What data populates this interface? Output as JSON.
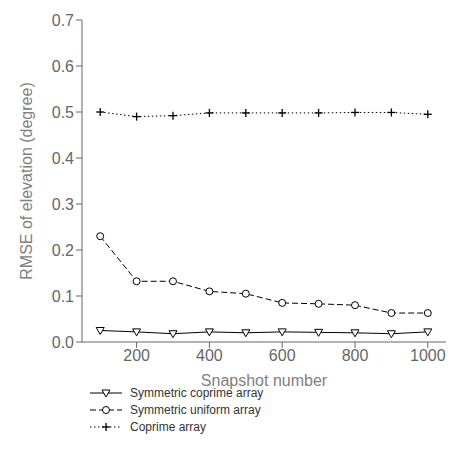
{
  "chart_data": {
    "type": "line",
    "x": [
      100,
      200,
      300,
      400,
      500,
      600,
      700,
      800,
      900,
      1000
    ],
    "series": [
      {
        "name": "Symmetric coprime array",
        "color": "#000000",
        "marker": "triangle-down",
        "line_style": "solid",
        "values": [
          0.025,
          0.022,
          0.018,
          0.022,
          0.02,
          0.022,
          0.021,
          0.02,
          0.018,
          0.022
        ]
      },
      {
        "name": "Symmetric uniform array",
        "color": "#000000",
        "marker": "circle",
        "line_style": "dashed",
        "values": [
          0.23,
          0.132,
          0.132,
          0.11,
          0.105,
          0.085,
          0.083,
          0.08,
          0.063,
          0.063
        ]
      },
      {
        "name": "Coprime array",
        "color": "#000000",
        "marker": "plus",
        "line_style": "dotted",
        "values": [
          0.5,
          0.49,
          0.492,
          0.498,
          0.498,
          0.498,
          0.498,
          0.499,
          0.499,
          0.495
        ]
      }
    ],
    "xlabel": "Snapshot number",
    "ylabel": "RMSE of elevation (degree)",
    "xlim": [
      50,
      1050
    ],
    "ylim": [
      0.0,
      0.7
    ],
    "xticks": [
      200,
      400,
      600,
      800,
      1000
    ],
    "yticks": [
      {
        "value": 0.0,
        "label": "0.0"
      },
      0.1,
      0.2,
      0.3,
      0.4,
      0.5,
      0.6,
      0.7
    ],
    "grid": false,
    "legend": "bottom"
  }
}
